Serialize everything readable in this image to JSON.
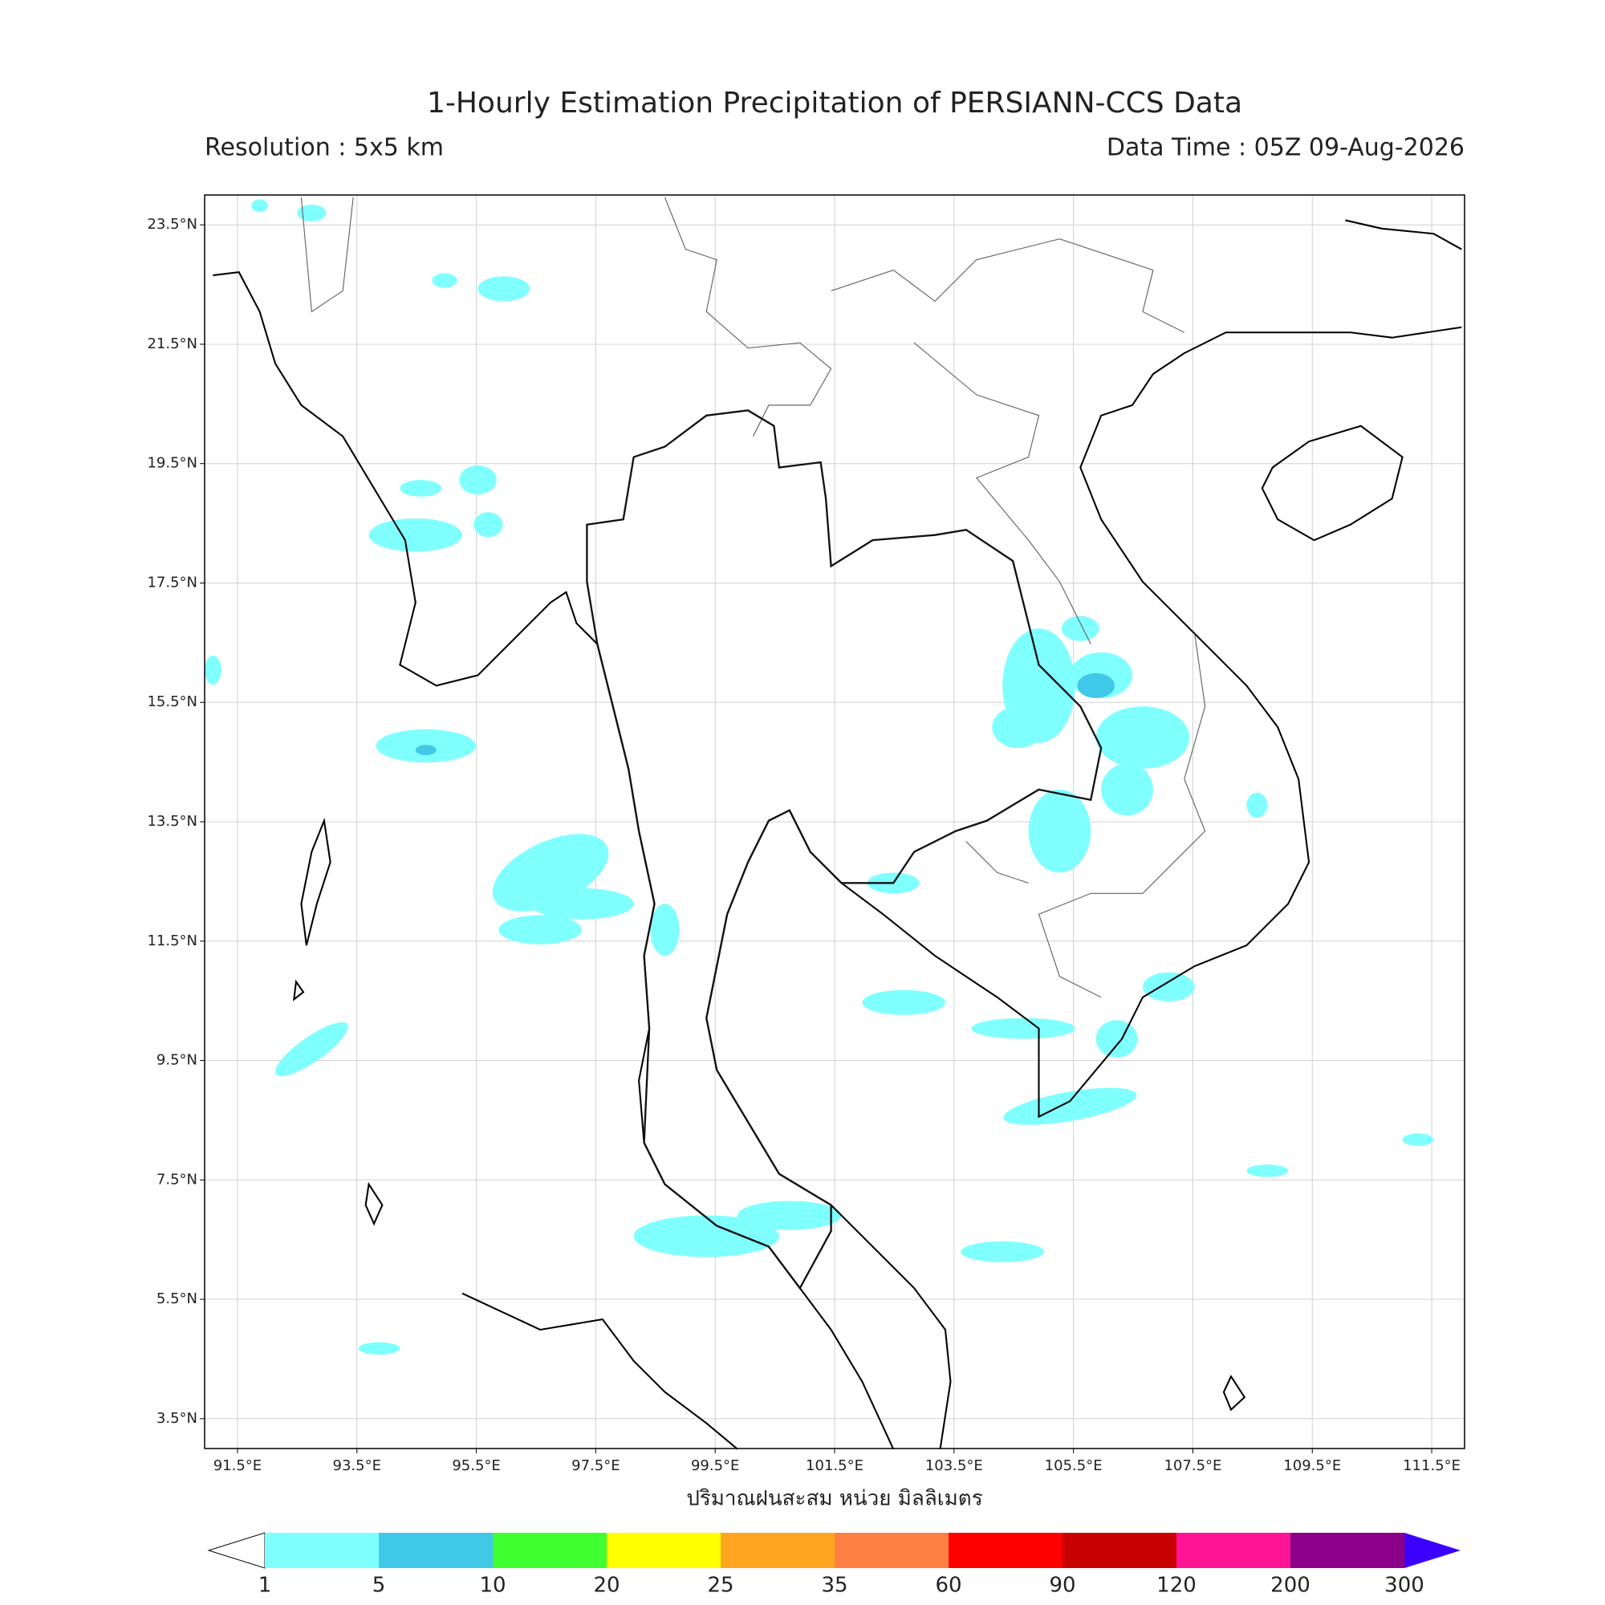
{
  "header": {
    "title": "1-Hourly Estimation Precipitation of PERSIANN-CCS Data",
    "resolution": "Resolution : 5x5 km",
    "data_time": "Data Time : 05Z 09-Aug-2026"
  },
  "map": {
    "xlim": [
      90.95,
      112.05
    ],
    "ylim": [
      3.0,
      24.0
    ],
    "grid": true,
    "xticks": [
      {
        "value": 91.5,
        "label": "91.5°E"
      },
      {
        "value": 93.5,
        "label": "93.5°E"
      },
      {
        "value": 95.5,
        "label": "95.5°E"
      },
      {
        "value": 97.5,
        "label": "97.5°E"
      },
      {
        "value": 99.5,
        "label": "99.5°E"
      },
      {
        "value": 101.5,
        "label": "101.5°E"
      },
      {
        "value": 103.5,
        "label": "103.5°E"
      },
      {
        "value": 105.5,
        "label": "105.5°E"
      },
      {
        "value": 107.5,
        "label": "107.5°E"
      },
      {
        "value": 109.5,
        "label": "109.5°E"
      },
      {
        "value": 111.5,
        "label": "111.5°E"
      }
    ],
    "yticks": [
      {
        "value": 3.5,
        "label": "3.5°N"
      },
      {
        "value": 5.5,
        "label": "5.5°N"
      },
      {
        "value": 7.5,
        "label": "7.5°N"
      },
      {
        "value": 9.5,
        "label": "9.5°N"
      },
      {
        "value": 11.5,
        "label": "11.5°N"
      },
      {
        "value": 13.5,
        "label": "13.5°N"
      },
      {
        "value": 15.5,
        "label": "15.5°N"
      },
      {
        "value": 17.5,
        "label": "17.5°N"
      },
      {
        "value": 19.5,
        "label": "19.5°N"
      },
      {
        "value": 21.5,
        "label": "21.5°N"
      },
      {
        "value": 23.5,
        "label": "23.5°N"
      }
    ],
    "xlabel": "ปริมาณฝนสะสม หน่วย มิลลิเมตร"
  },
  "colorbar": {
    "levels": [
      1,
      5,
      10,
      20,
      25,
      35,
      60,
      90,
      120,
      200,
      300
    ],
    "colors": [
      "#80ffff",
      "#40c8e8",
      "#40ff30",
      "#ffff00",
      "#ffa520",
      "#ff8040",
      "#ff0000",
      "#c80000",
      "#ff1493",
      "#8b008b"
    ],
    "under_color": "#ffffff",
    "over_color": "#3c00ff"
  }
}
